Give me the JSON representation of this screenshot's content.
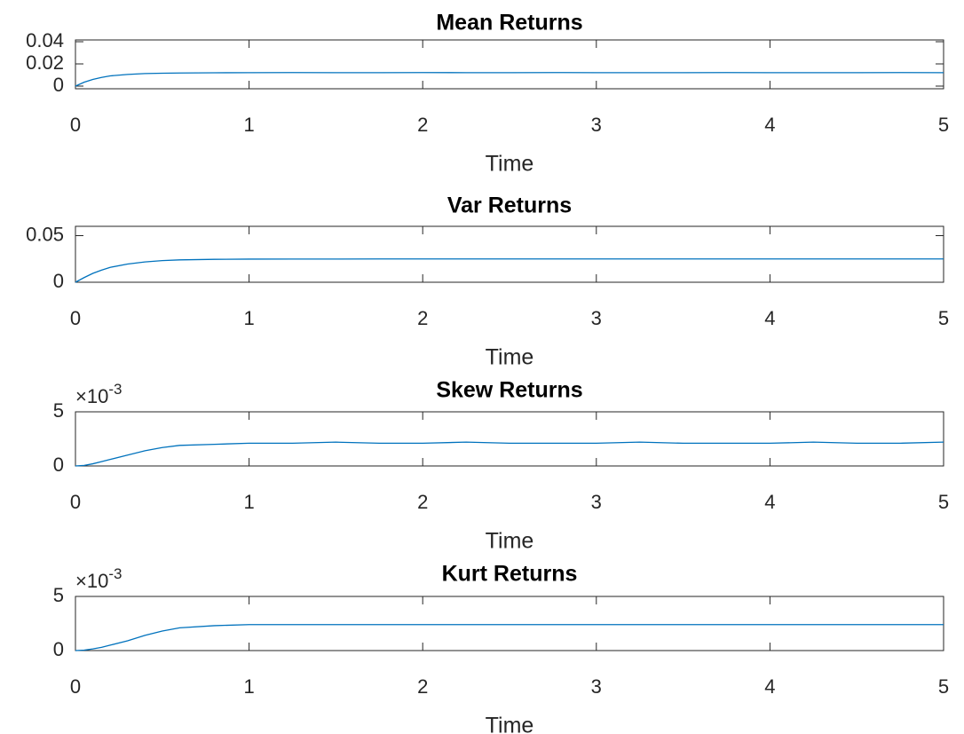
{
  "chart_data": [
    {
      "type": "line",
      "title": "Mean Returns",
      "xlabel": "Time",
      "x": [
        0,
        0.05,
        0.1,
        0.15,
        0.2,
        0.3,
        0.4,
        0.5,
        0.6,
        0.8,
        1,
        1.25,
        1.5,
        1.75,
        2,
        2.25,
        2.5,
        2.75,
        3,
        3.25,
        3.5,
        3.75,
        4,
        4.25,
        4.5,
        4.75,
        5
      ],
      "values": [
        0,
        0.0035,
        0.006,
        0.0078,
        0.0092,
        0.0105,
        0.0113,
        0.0116,
        0.0118,
        0.012,
        0.0121,
        0.0122,
        0.0121,
        0.0121,
        0.0122,
        0.0121,
        0.0121,
        0.0122,
        0.0121,
        0.0121,
        0.0121,
        0.0122,
        0.0121,
        0.0121,
        0.0121,
        0.0122,
        0.0121
      ],
      "color": "#0072bd",
      "xlim": [
        0,
        5
      ],
      "xticks": [
        0,
        1,
        2,
        3,
        4,
        5
      ],
      "ylim": [
        -0.0024,
        0.0416
      ],
      "yticks": [
        0,
        0.02,
        0.04
      ]
    },
    {
      "type": "line",
      "title": "Var Returns",
      "xlabel": "Time",
      "x": [
        0,
        0.05,
        0.1,
        0.15,
        0.2,
        0.3,
        0.4,
        0.5,
        0.6,
        0.8,
        1,
        1.25,
        1.5,
        1.75,
        2,
        2.25,
        2.5,
        2.75,
        3,
        3.25,
        3.5,
        3.75,
        4,
        4.25,
        4.5,
        4.75,
        5
      ],
      "values": [
        0,
        0.005,
        0.0095,
        0.013,
        0.016,
        0.0195,
        0.0218,
        0.0232,
        0.024,
        0.0246,
        0.0248,
        0.0249,
        0.0249,
        0.025,
        0.025,
        0.025,
        0.025,
        0.025,
        0.025,
        0.025,
        0.025,
        0.025,
        0.025,
        0.025,
        0.025,
        0.025,
        0.025
      ],
      "color": "#0072bd",
      "xlim": [
        0,
        5
      ],
      "xticks": [
        0,
        1,
        2,
        3,
        4,
        5
      ],
      "ylim": [
        0,
        0.06
      ],
      "yticks": [
        0,
        0.05
      ]
    },
    {
      "type": "line",
      "title": "Skew Returns",
      "xlabel": "Time",
      "y_multiplier": {
        "base": "×10",
        "exponent": "-3"
      },
      "x": [
        0,
        0.05,
        0.1,
        0.15,
        0.2,
        0.3,
        0.4,
        0.5,
        0.6,
        0.8,
        1,
        1.25,
        1.5,
        1.75,
        2,
        2.25,
        2.5,
        2.75,
        3,
        3.25,
        3.5,
        3.75,
        4,
        4.25,
        4.5,
        4.75,
        5
      ],
      "values": [
        0,
        5e-05,
        0.0002,
        0.0004,
        0.0006,
        0.001,
        0.0014,
        0.0017,
        0.0019,
        0.002,
        0.0021,
        0.0021,
        0.0022,
        0.0021,
        0.0021,
        0.0022,
        0.0021,
        0.0021,
        0.0021,
        0.0022,
        0.0021,
        0.0021,
        0.0021,
        0.0022,
        0.0021,
        0.0021,
        0.0022
      ],
      "color": "#0072bd",
      "xlim": [
        0,
        5
      ],
      "xticks": [
        0,
        1,
        2,
        3,
        4,
        5
      ],
      "ylim": [
        0,
        0.005
      ],
      "yticks": [
        0,
        {
          "value": 0.005,
          "label": "5"
        }
      ]
    },
    {
      "type": "line",
      "title": "Kurt Returns",
      "xlabel": "Time",
      "y_multiplier": {
        "base": "×10",
        "exponent": "-3"
      },
      "x": [
        0,
        0.05,
        0.1,
        0.15,
        0.2,
        0.3,
        0.4,
        0.5,
        0.6,
        0.8,
        1,
        1.25,
        1.5,
        1.75,
        2,
        2.25,
        2.5,
        2.75,
        3,
        3.25,
        3.5,
        3.75,
        4,
        4.25,
        4.5,
        4.75,
        5
      ],
      "values": [
        0,
        4e-05,
        0.00015,
        0.0003,
        0.0005,
        0.0009,
        0.0014,
        0.0018,
        0.0021,
        0.0023,
        0.0024,
        0.0024,
        0.0024,
        0.0024,
        0.0024,
        0.0024,
        0.0024,
        0.0024,
        0.0024,
        0.0024,
        0.0024,
        0.0024,
        0.0024,
        0.0024,
        0.0024,
        0.0024,
        0.0024
      ],
      "color": "#0072bd",
      "xlim": [
        0,
        5
      ],
      "xticks": [
        0,
        1,
        2,
        3,
        4,
        5
      ],
      "ylim": [
        0,
        0.005
      ],
      "yticks": [
        0,
        {
          "value": 0.005,
          "label": "5"
        }
      ]
    }
  ]
}
